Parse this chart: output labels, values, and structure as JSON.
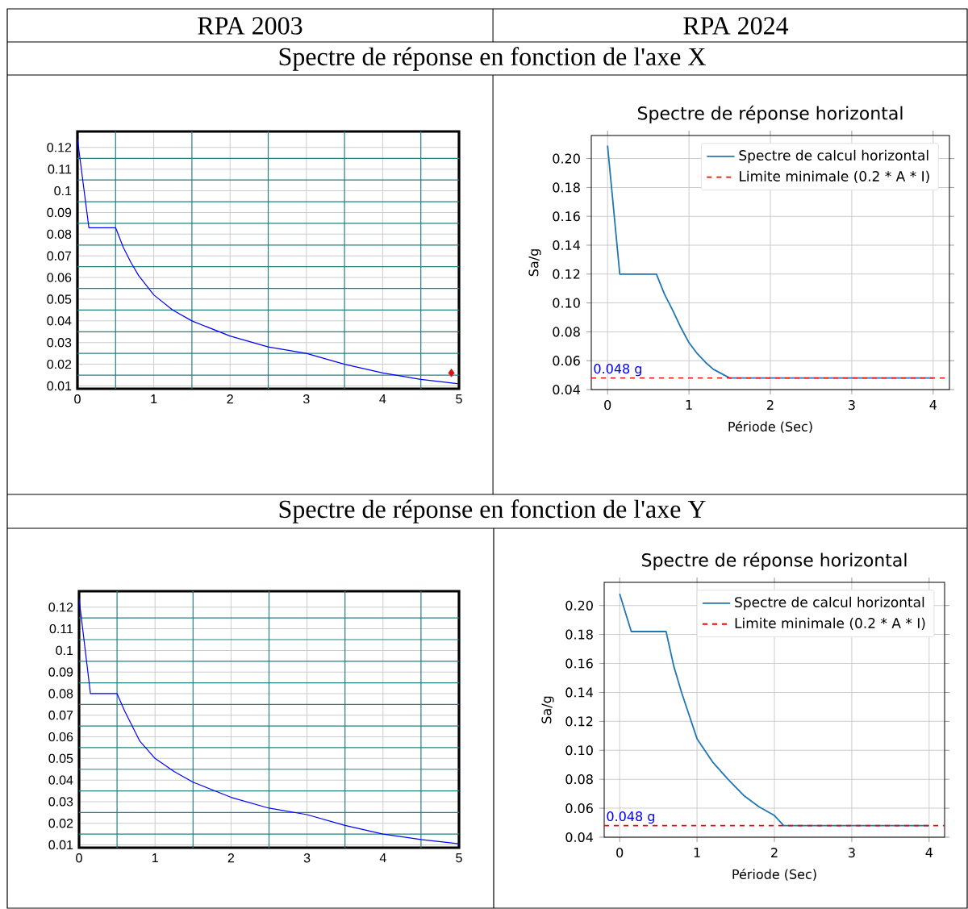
{
  "chart_data": [
    {
      "type": "line",
      "annotations": [
        "RPA 2003",
        "Spectre de réponse en fonction de l'axe X"
      ],
      "xlim": [
        0,
        5
      ],
      "ylim": [
        0.0087,
        0.1274
      ],
      "xticks": [
        0,
        {
          "value": 0.5,
          "label": null
        },
        1,
        {
          "value": 1.5,
          "label": null
        },
        2,
        {
          "value": 2.5,
          "label": null
        },
        3,
        {
          "value": 3.5,
          "label": null
        },
        4,
        {
          "value": 4.5,
          "label": null
        },
        5
      ],
      "yticks": [
        0.01,
        {
          "value": 0.015,
          "label": null
        },
        0.02,
        {
          "value": 0.025,
          "label": null
        },
        0.03,
        {
          "value": 0.035,
          "label": null
        },
        0.04,
        {
          "value": 0.045,
          "label": null
        },
        0.05,
        {
          "value": 0.055,
          "label": null
        },
        0.06,
        {
          "value": 0.065,
          "label": null
        },
        0.07,
        {
          "value": 0.075,
          "label": null
        },
        0.08,
        {
          "value": 0.085,
          "label": null
        },
        0.09,
        {
          "value": 0.095,
          "label": null
        },
        0.1,
        {
          "value": 0.105,
          "label": null
        },
        0.11,
        {
          "value": 0.115,
          "label": null
        },
        0.12
      ],
      "grid": true,
      "series": [
        {
          "color": "#0000ff",
          "x": [
            0,
            0.15,
            0.5,
            0.6,
            0.7,
            0.8,
            1,
            1.25,
            1.5,
            2,
            2.5,
            3,
            3.5,
            4,
            4.5,
            5
          ],
          "values": [
            0.124,
            0.083,
            0.083,
            0.074,
            0.067,
            0.061,
            0.052,
            0.045,
            0.04,
            0.033,
            0.028,
            0.025,
            0.02,
            0.016,
            0.013,
            0.011
          ]
        },
        {
          "type": "scatter",
          "color": "#ff0000",
          "marker": "diamond",
          "x": [
            4.9
          ],
          "values": [
            0.016
          ]
        }
      ]
    },
    {
      "type": "line",
      "title": "Spectre de réponse horizontal",
      "xlabel": "Période (Sec)",
      "ylabel": "Sa/g",
      "annotations": [
        "RPA 2024",
        {
          "text": "0.048 g",
          "x": -0.2,
          "y": 0.048
        }
      ],
      "xlim": [
        -0.2,
        4.2
      ],
      "ylim": [
        0.04,
        0.216
      ],
      "xticks": [
        0,
        1,
        2,
        3,
        4
      ],
      "yticks": [
        {
          "value": 0.04,
          "label": "0.04"
        },
        {
          "value": 0.06,
          "label": "0.06"
        },
        {
          "value": 0.08,
          "label": "0.08"
        },
        {
          "value": 0.1,
          "label": "0.10"
        },
        {
          "value": 0.12,
          "label": "0.12"
        },
        {
          "value": 0.14,
          "label": "0.14"
        },
        {
          "value": 0.16,
          "label": "0.16"
        },
        {
          "value": 0.18,
          "label": "0.18"
        },
        {
          "value": 0.2,
          "label": "0.20"
        }
      ],
      "grid": true,
      "legend": "top right",
      "series": [
        {
          "name": "Spectre de calcul horizontal",
          "color": "#1f77b4",
          "x": [
            0,
            0.15,
            0.6,
            0.7,
            0.8,
            0.9,
            1.0,
            1.1,
            1.2,
            1.3,
            1.4,
            1.5,
            4
          ],
          "values": [
            0.209,
            0.12,
            0.12,
            0.106,
            0.095,
            0.083,
            0.0725,
            0.065,
            0.059,
            0.054,
            0.051,
            0.048,
            0.048
          ]
        },
        {
          "name": "Limite minimale (0.2 * A * I)",
          "color": "#ff0000",
          "line_style": "dashed",
          "x": [
            -0.2,
            4.2
          ],
          "values": [
            0.048,
            0.048
          ]
        }
      ]
    },
    {
      "type": "line",
      "annotations": [
        "Spectre de réponse en fonction de l'axe Y"
      ],
      "xlim": [
        0,
        5
      ],
      "ylim": [
        0.0087,
        0.1274
      ],
      "xticks": [
        0,
        {
          "value": 0.5,
          "label": null
        },
        1,
        {
          "value": 1.5,
          "label": null
        },
        2,
        {
          "value": 2.5,
          "label": null
        },
        3,
        {
          "value": 3.5,
          "label": null
        },
        4,
        {
          "value": 4.5,
          "label": null
        },
        5
      ],
      "yticks": [
        0.01,
        {
          "value": 0.015,
          "label": null
        },
        0.02,
        {
          "value": 0.025,
          "label": null
        },
        0.03,
        {
          "value": 0.035,
          "label": null
        },
        0.04,
        {
          "value": 0.045,
          "label": null
        },
        0.05,
        {
          "value": 0.055,
          "label": null
        },
        0.06,
        {
          "value": 0.065,
          "label": null
        },
        0.07,
        {
          "value": 0.075,
          "label": null
        },
        0.08,
        {
          "value": 0.085,
          "label": null
        },
        0.09,
        {
          "value": 0.095,
          "label": null
        },
        0.1,
        {
          "value": 0.105,
          "label": null
        },
        0.11,
        {
          "value": 0.115,
          "label": null
        },
        0.12
      ],
      "grid": true,
      "series": [
        {
          "color": "#0000ff",
          "x": [
            0,
            0.15,
            0.5,
            0.6,
            0.7,
            0.8,
            1,
            1.25,
            1.5,
            2,
            2.5,
            3,
            3.5,
            4,
            4.5,
            5
          ],
          "values": [
            0.124,
            0.08,
            0.08,
            0.072,
            0.065,
            0.058,
            0.05,
            0.044,
            0.039,
            0.032,
            0.027,
            0.024,
            0.019,
            0.015,
            0.0125,
            0.0105
          ]
        }
      ]
    },
    {
      "type": "line",
      "title": "Spectre de réponse horizontal",
      "xlabel": "Période (Sec)",
      "ylabel": "Sa/g",
      "annotations": [
        {
          "text": "0.048 g",
          "x": -0.2,
          "y": 0.048
        }
      ],
      "xlim": [
        -0.2,
        4.2
      ],
      "ylim": [
        0.04,
        0.216
      ],
      "xticks": [
        0,
        1,
        2,
        3,
        4
      ],
      "yticks": [
        {
          "value": 0.04,
          "label": "0.04"
        },
        {
          "value": 0.06,
          "label": "0.06"
        },
        {
          "value": 0.08,
          "label": "0.08"
        },
        {
          "value": 0.1,
          "label": "0.10"
        },
        {
          "value": 0.12,
          "label": "0.12"
        },
        {
          "value": 0.14,
          "label": "0.14"
        },
        {
          "value": 0.16,
          "label": "0.16"
        },
        {
          "value": 0.18,
          "label": "0.18"
        },
        {
          "value": 0.2,
          "label": "0.20"
        }
      ],
      "grid": true,
      "legend": "top right",
      "series": [
        {
          "name": "Spectre de calcul horizontal",
          "color": "#1f77b4",
          "x": [
            0,
            0.15,
            0.6,
            0.7,
            0.8,
            1.0,
            1.2,
            1.4,
            1.6,
            1.8,
            2.0,
            2.12,
            4
          ],
          "values": [
            0.208,
            0.182,
            0.182,
            0.158,
            0.14,
            0.108,
            0.092,
            0.08,
            0.069,
            0.061,
            0.055,
            0.048,
            0.048
          ]
        },
        {
          "name": "Limite minimale (0.2 * A * I)",
          "color": "#ff0000",
          "line_style": "dashed",
          "x": [
            -0.2,
            4.2
          ],
          "values": [
            0.048,
            0.048
          ]
        }
      ]
    }
  ]
}
